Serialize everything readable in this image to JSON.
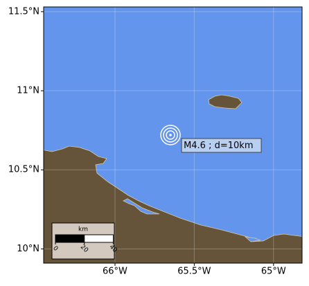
{
  "map": {
    "xlim": [
      -66.45,
      -64.82
    ],
    "ylim": [
      9.91,
      11.53
    ],
    "xticks": [
      {
        "value": -66,
        "label": "66°W"
      },
      {
        "value": -65.5,
        "label": "65.5°W"
      },
      {
        "value": -65,
        "label": "65°W"
      }
    ],
    "yticks": [
      {
        "value": 10,
        "label": "10°N"
      },
      {
        "value": 10.5,
        "label": "10.5°N"
      },
      {
        "value": 11,
        "label": "11°N"
      },
      {
        "value": 11.5,
        "label": "11.5°N"
      }
    ],
    "grid": true,
    "epicenter": {
      "lon": -65.65,
      "lat": 10.72,
      "label": "M4.6 ; d=10km"
    },
    "scale_bar": {
      "unit": "km",
      "ticks": [
        0,
        20,
        40
      ]
    }
  }
}
